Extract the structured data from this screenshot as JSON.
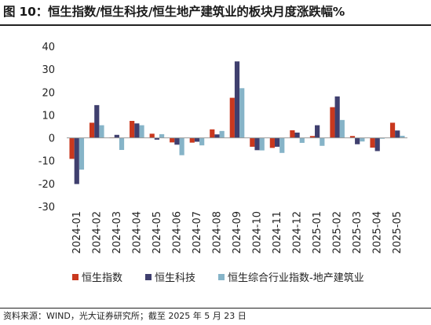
{
  "title": "图 10：恒生指数/恒生科技/恒生地产建筑业的板块月度涨跌幅%",
  "source": "资料来源：WIND，光大证券研究所；截至 2025 年 5 月 23 日",
  "chart_data": {
    "type": "bar",
    "categories": [
      "2024-01",
      "2024-02",
      "2024-03",
      "2024-04",
      "2024-05",
      "2024-06",
      "2024-07",
      "2024-08",
      "2024-09",
      "2024-10",
      "2024-11",
      "2024-12",
      "2025-01",
      "2025-02",
      "2025-03",
      "2025-04",
      "2025-05"
    ],
    "series": [
      {
        "name": "恒生指数",
        "color": "#c9381e",
        "values": [
          -9.2,
          6.6,
          0.2,
          7.4,
          1.8,
          -2.0,
          -2.1,
          3.7,
          17.5,
          -3.9,
          -4.4,
          3.3,
          0.8,
          13.4,
          0.8,
          -4.3,
          6.6
        ]
      },
      {
        "name": "恒生科技",
        "color": "#3f3f6e",
        "values": [
          -20.2,
          14.3,
          1.3,
          6.3,
          -0.8,
          -3.0,
          -1.7,
          1.5,
          33.4,
          -5.4,
          -3.9,
          2.3,
          5.5,
          18.1,
          -2.8,
          -5.8,
          3.2
        ]
      },
      {
        "name": "恒生综合行业指数-地产建筑业",
        "color": "#86b4c8",
        "values": [
          -13.9,
          5.5,
          -5.3,
          5.5,
          1.6,
          -7.6,
          -3.3,
          3.0,
          21.7,
          -5.5,
          -6.6,
          -2.2,
          -3.5,
          7.8,
          -1.6,
          -0.4,
          0.9
        ]
      }
    ],
    "ylim": [
      -30,
      40
    ],
    "yticks": [
      -30,
      -20,
      -10,
      0,
      10,
      20,
      30,
      40
    ],
    "legend_position": "bottom",
    "grid": false
  }
}
